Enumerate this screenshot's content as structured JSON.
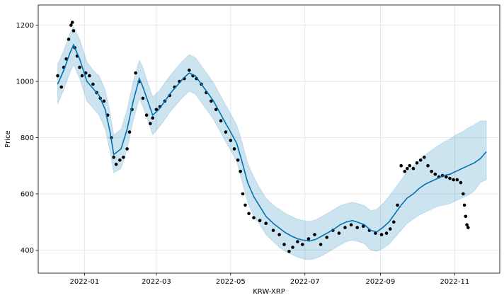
{
  "chart_data": {
    "type": "line",
    "title": "",
    "xlabel": "KRW-XRP",
    "ylabel": "Price",
    "xlim": [
      "2021-11-24",
      "2022-12-08"
    ],
    "ylim": [
      318,
      1272
    ],
    "grid": true,
    "x_ticks": [
      {
        "date": "2022-01-01",
        "label": "2022-01"
      },
      {
        "date": "2022-03-01",
        "label": "2022-03"
      },
      {
        "date": "2022-05-01",
        "label": "2022-05"
      },
      {
        "date": "2022-07-01",
        "label": "2022-07"
      },
      {
        "date": "2022-09-01",
        "label": "2022-09"
      },
      {
        "date": "2022-11-01",
        "label": "2022-11"
      }
    ],
    "y_ticks": [
      400,
      600,
      800,
      1000,
      1200
    ],
    "colors": {
      "actual": "#000000",
      "forecast": "#0072B2",
      "interval": "#0072B2"
    },
    "series": [
      {
        "role": "forecast",
        "x": [
          "2021-12-10",
          "2021-12-15",
          "2021-12-20",
          "2021-12-23",
          "2021-12-28",
          "2022-01-03",
          "2022-01-08",
          "2022-01-13",
          "2022-01-18",
          "2022-01-22",
          "2022-01-25",
          "2022-01-31",
          "2022-02-05",
          "2022-02-10",
          "2022-02-15",
          "2022-02-18",
          "2022-02-22",
          "2022-02-26",
          "2022-03-03",
          "2022-03-08",
          "2022-03-13",
          "2022-03-18",
          "2022-03-23",
          "2022-03-28",
          "2022-04-02",
          "2022-04-07",
          "2022-04-12",
          "2022-04-17",
          "2022-04-22",
          "2022-04-27",
          "2022-05-01",
          "2022-05-06",
          "2022-05-10",
          "2022-05-15",
          "2022-05-20",
          "2022-05-25",
          "2022-05-30",
          "2022-06-05",
          "2022-06-10",
          "2022-06-15",
          "2022-06-20",
          "2022-06-25",
          "2022-06-30",
          "2022-07-05",
          "2022-07-10",
          "2022-07-15",
          "2022-07-20",
          "2022-07-25",
          "2022-07-30",
          "2022-08-04",
          "2022-08-09",
          "2022-08-14",
          "2022-08-19",
          "2022-08-24",
          "2022-08-29",
          "2022-09-03",
          "2022-09-08",
          "2022-09-13",
          "2022-09-18",
          "2022-09-23",
          "2022-09-28",
          "2022-10-03",
          "2022-10-08",
          "2022-10-13",
          "2022-10-18",
          "2022-10-23",
          "2022-10-28",
          "2022-11-02",
          "2022-11-07",
          "2022-11-12",
          "2022-11-17",
          "2022-11-22",
          "2022-11-27"
        ],
        "y": [
          990,
          1040,
          1100,
          1130,
          1080,
          1000,
          975,
          950,
          900,
          820,
          740,
          760,
          830,
          930,
          1010,
          980,
          930,
          880,
          900,
          930,
          960,
          985,
          1010,
          1030,
          1020,
          990,
          960,
          930,
          890,
          850,
          820,
          780,
          720,
          640,
          590,
          555,
          520,
          495,
          478,
          462,
          450,
          440,
          435,
          432,
          438,
          450,
          462,
          475,
          490,
          500,
          505,
          498,
          490,
          470,
          465,
          480,
          500,
          530,
          560,
          585,
          600,
          620,
          635,
          645,
          655,
          665,
          670,
          680,
          690,
          700,
          710,
          725,
          750
        ]
      },
      {
        "role": "uncertainty-upper",
        "x": [
          "2021-12-10",
          "2021-12-15",
          "2021-12-20",
          "2021-12-23",
          "2021-12-28",
          "2022-01-03",
          "2022-01-08",
          "2022-01-13",
          "2022-01-18",
          "2022-01-22",
          "2022-01-25",
          "2022-01-31",
          "2022-02-05",
          "2022-02-10",
          "2022-02-15",
          "2022-02-18",
          "2022-02-22",
          "2022-02-26",
          "2022-03-03",
          "2022-03-08",
          "2022-03-13",
          "2022-03-18",
          "2022-03-23",
          "2022-03-28",
          "2022-04-02",
          "2022-04-07",
          "2022-04-12",
          "2022-04-17",
          "2022-04-22",
          "2022-04-27",
          "2022-05-01",
          "2022-05-06",
          "2022-05-10",
          "2022-05-15",
          "2022-05-20",
          "2022-05-25",
          "2022-05-30",
          "2022-06-05",
          "2022-06-10",
          "2022-06-15",
          "2022-06-20",
          "2022-06-25",
          "2022-06-30",
          "2022-07-05",
          "2022-07-10",
          "2022-07-15",
          "2022-07-20",
          "2022-07-25",
          "2022-07-30",
          "2022-08-04",
          "2022-08-09",
          "2022-08-14",
          "2022-08-19",
          "2022-08-24",
          "2022-08-29",
          "2022-09-03",
          "2022-09-08",
          "2022-09-13",
          "2022-09-18",
          "2022-09-23",
          "2022-09-28",
          "2022-10-03",
          "2022-10-08",
          "2022-10-13",
          "2022-10-18",
          "2022-10-23",
          "2022-10-28",
          "2022-11-02",
          "2022-11-07",
          "2022-11-12",
          "2022-11-17",
          "2022-11-22",
          "2022-11-27"
        ],
        "y": [
          1060,
          1110,
          1170,
          1195,
          1150,
          1070,
          1040,
          1020,
          970,
          890,
          810,
          830,
          900,
          1000,
          1075,
          1050,
          995,
          945,
          965,
          995,
          1025,
          1050,
          1075,
          1095,
          1085,
          1055,
          1025,
          995,
          955,
          915,
          885,
          845,
          790,
          710,
          660,
          620,
          585,
          560,
          545,
          530,
          520,
          510,
          505,
          502,
          508,
          520,
          532,
          545,
          558,
          565,
          570,
          565,
          558,
          540,
          545,
          565,
          590,
          620,
          650,
          680,
          700,
          720,
          740,
          755,
          770,
          785,
          795,
          810,
          820,
          835,
          845,
          860,
          860
        ]
      },
      {
        "role": "uncertainty-lower",
        "x": [
          "2021-12-10",
          "2021-12-15",
          "2021-12-20",
          "2021-12-23",
          "2021-12-28",
          "2022-01-03",
          "2022-01-08",
          "2022-01-13",
          "2022-01-18",
          "2022-01-22",
          "2022-01-25",
          "2022-01-31",
          "2022-02-05",
          "2022-02-10",
          "2022-02-15",
          "2022-02-18",
          "2022-02-22",
          "2022-02-26",
          "2022-03-03",
          "2022-03-08",
          "2022-03-13",
          "2022-03-18",
          "2022-03-23",
          "2022-03-28",
          "2022-04-02",
          "2022-04-07",
          "2022-04-12",
          "2022-04-17",
          "2022-04-22",
          "2022-04-27",
          "2022-05-01",
          "2022-05-06",
          "2022-05-10",
          "2022-05-15",
          "2022-05-20",
          "2022-05-25",
          "2022-05-30",
          "2022-06-05",
          "2022-06-10",
          "2022-06-15",
          "2022-06-20",
          "2022-06-25",
          "2022-06-30",
          "2022-07-05",
          "2022-07-10",
          "2022-07-15",
          "2022-07-20",
          "2022-07-25",
          "2022-07-30",
          "2022-08-04",
          "2022-08-09",
          "2022-08-14",
          "2022-08-19",
          "2022-08-24",
          "2022-08-29",
          "2022-09-03",
          "2022-09-08",
          "2022-09-13",
          "2022-09-18",
          "2022-09-23",
          "2022-09-28",
          "2022-10-03",
          "2022-10-08",
          "2022-10-13",
          "2022-10-18",
          "2022-10-23",
          "2022-10-28",
          "2022-11-02",
          "2022-11-07",
          "2022-11-12",
          "2022-11-17",
          "2022-11-22",
          "2022-11-27"
        ],
        "y": [
          920,
          970,
          1030,
          1060,
          1010,
          930,
          905,
          880,
          830,
          750,
          675,
          690,
          760,
          860,
          940,
          910,
          860,
          810,
          835,
          865,
          895,
          920,
          945,
          965,
          955,
          925,
          895,
          865,
          825,
          785,
          755,
          715,
          650,
          570,
          520,
          490,
          455,
          430,
          410,
          395,
          385,
          375,
          368,
          365,
          370,
          380,
          392,
          405,
          418,
          430,
          435,
          430,
          422,
          400,
          395,
          405,
          420,
          445,
          470,
          495,
          510,
          525,
          535,
          545,
          555,
          560,
          565,
          575,
          585,
          595,
          610,
          640,
          650
        ]
      },
      {
        "role": "actual",
        "x": [
          "2021-12-10",
          "2021-12-13",
          "2021-12-15",
          "2021-12-17",
          "2021-12-19",
          "2021-12-21",
          "2021-12-22",
          "2021-12-23",
          "2021-12-24",
          "2021-12-26",
          "2021-12-28",
          "2021-12-30",
          "2022-01-02",
          "2022-01-05",
          "2022-01-08",
          "2022-01-11",
          "2022-01-14",
          "2022-01-17",
          "2022-01-20",
          "2022-01-23",
          "2022-01-25",
          "2022-01-27",
          "2022-01-30",
          "2022-02-02",
          "2022-02-05",
          "2022-02-07",
          "2022-02-09",
          "2022-02-12",
          "2022-02-15",
          "2022-02-18",
          "2022-02-21",
          "2022-02-24",
          "2022-02-26",
          "2022-03-01",
          "2022-03-04",
          "2022-03-08",
          "2022-03-12",
          "2022-03-16",
          "2022-03-20",
          "2022-03-24",
          "2022-03-28",
          "2022-03-31",
          "2022-04-03",
          "2022-04-07",
          "2022-04-11",
          "2022-04-15",
          "2022-04-19",
          "2022-04-23",
          "2022-04-27",
          "2022-05-01",
          "2022-05-04",
          "2022-05-07",
          "2022-05-09",
          "2022-05-11",
          "2022-05-13",
          "2022-05-16",
          "2022-05-20",
          "2022-05-25",
          "2022-05-30",
          "2022-06-05",
          "2022-06-10",
          "2022-06-14",
          "2022-06-18",
          "2022-06-21",
          "2022-06-25",
          "2022-06-29",
          "2022-07-04",
          "2022-07-09",
          "2022-07-14",
          "2022-07-19",
          "2022-07-24",
          "2022-07-29",
          "2022-08-03",
          "2022-08-08",
          "2022-08-13",
          "2022-08-18",
          "2022-08-23",
          "2022-08-28",
          "2022-09-02",
          "2022-09-06",
          "2022-09-09",
          "2022-09-12",
          "2022-09-15",
          "2022-09-18",
          "2022-09-21",
          "2022-09-23",
          "2022-09-25",
          "2022-09-28",
          "2022-10-01",
          "2022-10-04",
          "2022-10-07",
          "2022-10-10",
          "2022-10-13",
          "2022-10-16",
          "2022-10-19",
          "2022-10-22",
          "2022-10-25",
          "2022-10-28",
          "2022-10-31",
          "2022-11-03",
          "2022-11-06",
          "2022-11-08",
          "2022-11-09",
          "2022-11-10",
          "2022-11-11",
          "2022-11-12"
        ],
        "y": [
          1020,
          980,
          1050,
          1080,
          1150,
          1200,
          1210,
          1180,
          1120,
          1090,
          1050,
          1020,
          1030,
          1020,
          990,
          960,
          940,
          930,
          880,
          800,
          730,
          705,
          720,
          730,
          760,
          820,
          900,
          1030,
          1000,
          940,
          880,
          850,
          870,
          900,
          910,
          930,
          950,
          980,
          1000,
          1010,
          1040,
          1020,
          1010,
          990,
          960,
          930,
          900,
          860,
          820,
          790,
          760,
          720,
          680,
          600,
          560,
          530,
          515,
          505,
          495,
          470,
          455,
          420,
          395,
          410,
          430,
          420,
          440,
          455,
          420,
          445,
          470,
          460,
          480,
          490,
          480,
          485,
          470,
          460,
          455,
          460,
          475,
          500,
          560,
          700,
          680,
          690,
          700,
          690,
          710,
          720,
          730,
          700,
          680,
          670,
          660,
          665,
          660,
          655,
          650,
          650,
          640,
          600,
          560,
          520,
          490,
          480
        ]
      }
    ]
  }
}
